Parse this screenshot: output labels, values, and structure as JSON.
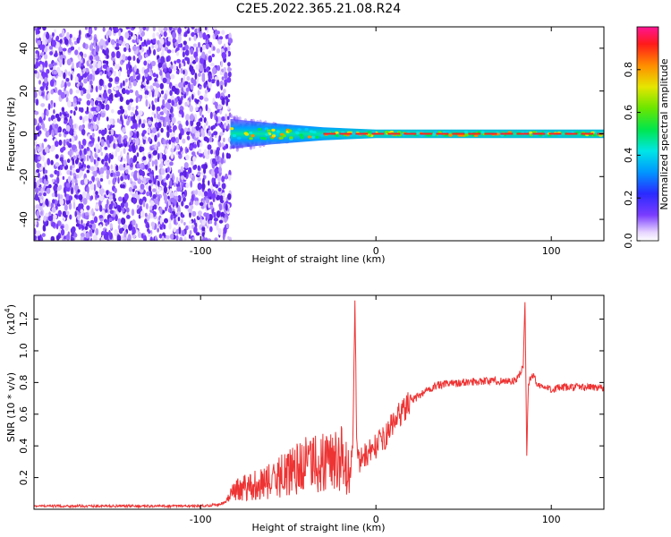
{
  "title": "C2E5.2022.365.21.08.R24",
  "chart_data": [
    {
      "type": "heatmap",
      "xlabel": "Height of straight line (km)",
      "ylabel": "Frequency (Hz)",
      "xlim": [
        -195,
        130
      ],
      "ylim": [
        -50,
        50
      ],
      "xticks": [
        -100,
        0,
        100
      ],
      "yticks": [
        -40,
        -20,
        0,
        20,
        40
      ],
      "colorbar": {
        "label": "Normalized spectral amplitude",
        "range": [
          0.0,
          1.0
        ],
        "ticks": [
          0.0,
          0.2,
          0.4,
          0.6,
          0.8
        ]
      },
      "noise_region_x": [
        -195,
        -83
      ],
      "signal_band": [
        {
          "x": -83,
          "y_halfwidth": 7
        },
        {
          "x": -60,
          "y_halfwidth": 5
        },
        {
          "x": -30,
          "y_halfwidth": 3
        },
        {
          "x": 0,
          "y_halfwidth": 2
        },
        {
          "x": 130,
          "y_halfwidth": 2
        }
      ]
    },
    {
      "type": "line",
      "xlabel": "Height of straight line (km)",
      "ylabel": "SNR (10 * v/v)",
      "yscale_label": "(x10",
      "yscale_exponent": "4",
      "yscale_suffix": ")",
      "xlim": [
        -195,
        130
      ],
      "ylim": [
        0,
        1.35
      ],
      "xticks": [
        -100,
        0,
        100
      ],
      "yticks": [
        0.2,
        0.4,
        0.6,
        0.8,
        1.0,
        1.2
      ],
      "ytick_labels": [
        "0.2",
        "0.4",
        "0.6",
        "0.8",
        "1.0",
        "1.2"
      ],
      "series": [
        {
          "color": "#ee3333",
          "x": [
            -195,
            -150,
            -100,
            -90,
            -85,
            -80,
            -75,
            -70,
            -65,
            -60,
            -55,
            -50,
            -45,
            -40,
            -35,
            -30,
            -25,
            -20,
            -15,
            -13,
            -12,
            -11,
            -10,
            -5,
            0,
            5,
            10,
            15,
            20,
            25,
            30,
            35,
            40,
            50,
            60,
            70,
            80,
            84,
            85,
            86,
            87,
            88,
            90,
            92,
            95,
            100,
            110,
            120,
            130
          ],
          "y": [
            0.02,
            0.02,
            0.02,
            0.03,
            0.05,
            0.1,
            0.12,
            0.14,
            0.15,
            0.15,
            0.18,
            0.2,
            0.22,
            0.24,
            0.26,
            0.27,
            0.28,
            0.28,
            0.2,
            0.5,
            1.25,
            0.45,
            0.3,
            0.35,
            0.4,
            0.45,
            0.55,
            0.62,
            0.68,
            0.72,
            0.76,
            0.78,
            0.79,
            0.8,
            0.81,
            0.81,
            0.81,
            0.9,
            1.33,
            0.35,
            0.8,
            0.82,
            0.85,
            0.78,
            0.77,
            0.76,
            0.77,
            0.77,
            0.77
          ]
        }
      ]
    }
  ]
}
